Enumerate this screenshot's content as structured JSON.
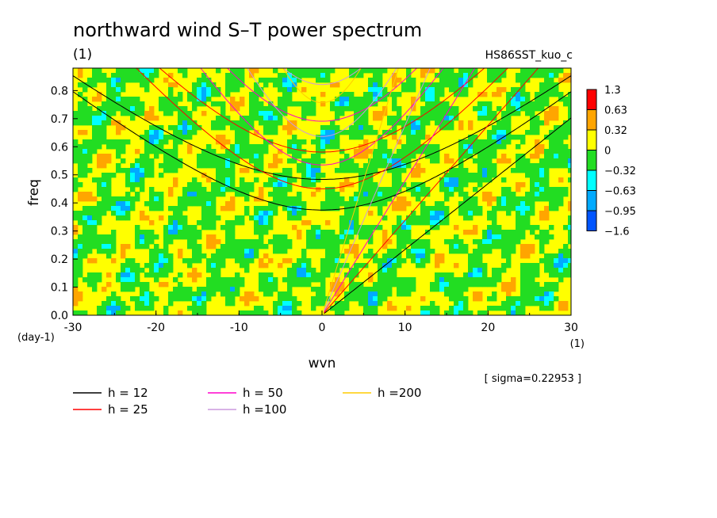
{
  "chart_data": {
    "type": "heatmap",
    "title": "northward wind S–T power spectrum",
    "subtitle": "(1)",
    "run_label": "HS86SST_kuo_c",
    "xlabel": "wvn",
    "xunit": "(1)",
    "ylabel": "freq",
    "yunit": "(day-1)",
    "xlim": [
      -30,
      30
    ],
    "ylim": [
      0.0,
      0.88
    ],
    "x_ticks": [
      "-30",
      "-20",
      "-10",
      "0",
      "10",
      "20",
      "30"
    ],
    "y_ticks": [
      "0.0",
      "0.1",
      "0.2",
      "0.3",
      "0.4",
      "0.5",
      "0.6",
      "0.7",
      "0.8"
    ],
    "sigma_label": "[ sigma=0.22953 ]",
    "grid": false,
    "colorbar": {
      "levels": [
        "1.3",
        "0.63",
        "0.32",
        "0",
        "−0.32",
        "−0.63",
        "−0.95",
        "−1.6"
      ],
      "colors": [
        "#ff0000",
        "#ffa500",
        "#ffff00",
        "#22dd22",
        "#00ffff",
        "#00aaff",
        "#0055ff"
      ]
    },
    "legend": [
      {
        "label": "h = 12",
        "color": "#000000"
      },
      {
        "label": "h = 25",
        "color": "#ff0000"
      },
      {
        "label": "h = 50",
        "color": "#ff00cc"
      },
      {
        "label": "h =100",
        "color": "#cc99dd"
      },
      {
        "label": "h =200",
        "color": "#ffcc00"
      }
    ],
    "dispersion_curves": {
      "equivalent_depths": [
        12,
        25,
        50,
        100,
        200
      ],
      "mode_types": [
        "Kelvin",
        "n=1 inertio-gravity",
        "n=2 inertio-gravity"
      ]
    }
  }
}
